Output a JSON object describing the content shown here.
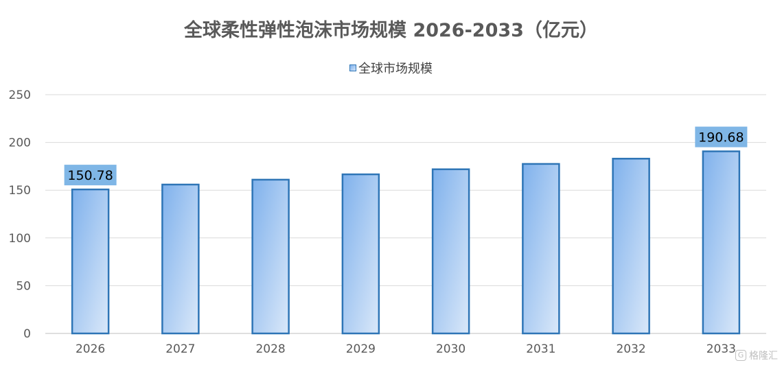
{
  "chart_data": {
    "type": "bar",
    "title": "全球柔性弹性泡沫市场规模 2026-2033（亿元）",
    "categories": [
      "2026",
      "2027",
      "2028",
      "2029",
      "2030",
      "2031",
      "2032",
      "2033"
    ],
    "series": [
      {
        "name": "全球市场规模",
        "values": [
          150.78,
          155.9,
          161.0,
          166.6,
          171.9,
          177.5,
          183.0,
          190.68
        ]
      }
    ],
    "data_labels": {
      "2026": "150.78",
      "2033": "190.68"
    },
    "ylim": [
      0,
      250
    ],
    "yticks": [
      0,
      50,
      100,
      150,
      200,
      250
    ],
    "grid": true,
    "legend_position": "top-center",
    "colors": {
      "bar_fill_start": "#7fb1ec",
      "bar_fill_end": "#dae8f9",
      "bar_border": "#2e75b6",
      "label_bg": "#7fb6e6",
      "grid": "#d9d9d9",
      "axis_text": "#595959"
    }
  },
  "watermark": {
    "text": "格隆汇",
    "icon": "G"
  }
}
